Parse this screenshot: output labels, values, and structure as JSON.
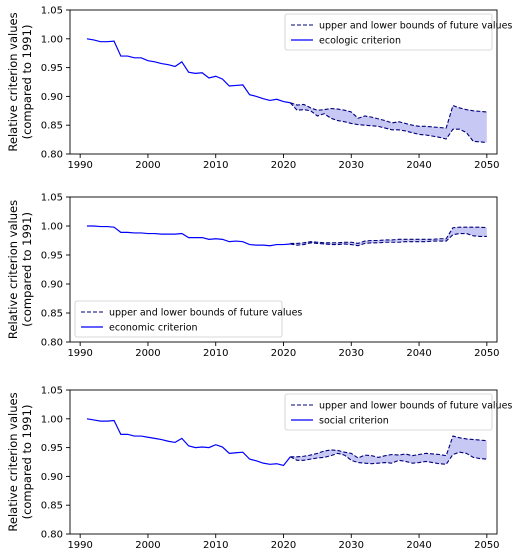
{
  "chart_data": [
    {
      "type": "line",
      "ylabel_line1": "Relative criterion values",
      "ylabel_line2": "(compared to 1991)",
      "xlim": [
        1988.5,
        2051.5
      ],
      "ylim": [
        0.8,
        1.05
      ],
      "x_ticks": [
        "1990",
        "2000",
        "2010",
        "2020",
        "2030",
        "2040",
        "2050"
      ],
      "y_ticks": [
        "0.80",
        "0.85",
        "0.90",
        "0.95",
        "1.00",
        "1.05"
      ],
      "legend_position": "top-right",
      "legend": [
        "upper and lower bounds of future values",
        "ecologic criterion"
      ],
      "color": "#0000ff",
      "fill_color": "#c8c8f4",
      "historical": {
        "x": [
          1991,
          1992,
          1993,
          1994,
          1995,
          1996,
          1997,
          1998,
          1999,
          2000,
          2001,
          2002,
          2003,
          2004,
          2005,
          2006,
          2007,
          2008,
          2009,
          2010,
          2011,
          2012,
          2013,
          2014,
          2015,
          2016,
          2017,
          2018,
          2019,
          2020,
          2021
        ],
        "y": [
          1.0,
          0.998,
          0.995,
          0.995,
          0.996,
          0.97,
          0.97,
          0.967,
          0.967,
          0.962,
          0.96,
          0.957,
          0.955,
          0.952,
          0.96,
          0.942,
          0.94,
          0.941,
          0.932,
          0.935,
          0.93,
          0.918,
          0.919,
          0.92,
          0.903,
          0.9,
          0.896,
          0.893,
          0.895,
          0.891,
          0.889
        ]
      },
      "bounds": {
        "x": [
          2021,
          2022,
          2023,
          2024,
          2025,
          2026,
          2027,
          2028,
          2029,
          2030,
          2031,
          2032,
          2033,
          2034,
          2035,
          2036,
          2037,
          2038,
          2039,
          2040,
          2041,
          2042,
          2043,
          2044,
          2045,
          2046,
          2047,
          2048,
          2049,
          2050
        ],
        "upper": [
          0.889,
          0.885,
          0.886,
          0.88,
          0.876,
          0.877,
          0.879,
          0.878,
          0.876,
          0.873,
          0.862,
          0.866,
          0.864,
          0.861,
          0.858,
          0.854,
          0.856,
          0.853,
          0.85,
          0.848,
          0.848,
          0.847,
          0.846,
          0.845,
          0.884,
          0.88,
          0.877,
          0.875,
          0.874,
          0.873
        ],
        "lower": [
          0.889,
          0.876,
          0.877,
          0.875,
          0.866,
          0.87,
          0.862,
          0.858,
          0.856,
          0.853,
          0.851,
          0.85,
          0.849,
          0.848,
          0.845,
          0.842,
          0.842,
          0.84,
          0.837,
          0.834,
          0.833,
          0.831,
          0.829,
          0.826,
          0.843,
          0.843,
          0.837,
          0.822,
          0.821,
          0.82
        ]
      }
    },
    {
      "type": "line",
      "ylabel_line1": "Relative criterion values",
      "ylabel_line2": "(compared to 1991)",
      "xlim": [
        1988.5,
        2051.5
      ],
      "ylim": [
        0.8,
        1.05
      ],
      "x_ticks": [
        "1990",
        "2000",
        "2010",
        "2020",
        "2030",
        "2040",
        "2050"
      ],
      "y_ticks": [
        "0.80",
        "0.85",
        "0.90",
        "0.95",
        "1.00",
        "1.05"
      ],
      "legend_position": "bottom-left",
      "legend": [
        "upper and lower bounds of future values",
        "economic criterion"
      ],
      "color": "#0000ff",
      "fill_color": "#c8c8f4",
      "historical": {
        "x": [
          1991,
          1992,
          1993,
          1994,
          1995,
          1996,
          1997,
          1998,
          1999,
          2000,
          2001,
          2002,
          2003,
          2004,
          2005,
          2006,
          2007,
          2008,
          2009,
          2010,
          2011,
          2012,
          2013,
          2014,
          2015,
          2016,
          2017,
          2018,
          2019,
          2020,
          2021
        ],
        "y": [
          1.0,
          1.0,
          0.999,
          0.999,
          0.998,
          0.989,
          0.989,
          0.988,
          0.988,
          0.987,
          0.987,
          0.986,
          0.986,
          0.986,
          0.987,
          0.98,
          0.98,
          0.98,
          0.977,
          0.978,
          0.977,
          0.973,
          0.974,
          0.973,
          0.968,
          0.967,
          0.967,
          0.966,
          0.968,
          0.968,
          0.969
        ]
      },
      "bounds": {
        "x": [
          2021,
          2022,
          2023,
          2024,
          2025,
          2026,
          2027,
          2028,
          2029,
          2030,
          2031,
          2032,
          2033,
          2034,
          2035,
          2036,
          2037,
          2038,
          2039,
          2040,
          2041,
          2042,
          2043,
          2044,
          2045,
          2046,
          2047,
          2048,
          2049,
          2050
        ],
        "upper": [
          0.97,
          0.97,
          0.971,
          0.973,
          0.972,
          0.971,
          0.971,
          0.971,
          0.972,
          0.972,
          0.97,
          0.974,
          0.975,
          0.975,
          0.976,
          0.976,
          0.977,
          0.977,
          0.977,
          0.977,
          0.977,
          0.977,
          0.978,
          0.978,
          0.997,
          0.998,
          0.998,
          0.998,
          0.998,
          0.997
        ],
        "lower": [
          0.969,
          0.967,
          0.968,
          0.971,
          0.97,
          0.969,
          0.968,
          0.968,
          0.969,
          0.968,
          0.966,
          0.97,
          0.971,
          0.971,
          0.972,
          0.972,
          0.972,
          0.973,
          0.973,
          0.973,
          0.973,
          0.974,
          0.974,
          0.974,
          0.985,
          0.987,
          0.987,
          0.983,
          0.982,
          0.982
        ]
      }
    },
    {
      "type": "line",
      "ylabel_line1": "Relative criterion values",
      "ylabel_line2": "(compared to 1991)",
      "xlim": [
        1988.5,
        2051.5
      ],
      "ylim": [
        0.8,
        1.05
      ],
      "x_ticks": [
        "1990",
        "2000",
        "2010",
        "2020",
        "2030",
        "2040",
        "2050"
      ],
      "y_ticks": [
        "0.80",
        "0.85",
        "0.90",
        "0.95",
        "1.00",
        "1.05"
      ],
      "legend_position": "top-right",
      "legend": [
        "upper and lower bounds of future values",
        "social criterion"
      ],
      "color": "#0000ff",
      "fill_color": "#c8c8f4",
      "historical": {
        "x": [
          1991,
          1992,
          1993,
          1994,
          1995,
          1996,
          1997,
          1998,
          1999,
          2000,
          2001,
          2002,
          2003,
          2004,
          2005,
          2006,
          2007,
          2008,
          2009,
          2010,
          2011,
          2012,
          2013,
          2014,
          2015,
          2016,
          2017,
          2018,
          2019,
          2020,
          2021
        ],
        "y": [
          1.0,
          0.998,
          0.996,
          0.996,
          0.997,
          0.973,
          0.973,
          0.97,
          0.97,
          0.968,
          0.966,
          0.964,
          0.961,
          0.959,
          0.966,
          0.953,
          0.95,
          0.951,
          0.95,
          0.955,
          0.951,
          0.94,
          0.941,
          0.942,
          0.93,
          0.927,
          0.923,
          0.921,
          0.922,
          0.919,
          0.934
        ]
      },
      "bounds": {
        "x": [
          2021,
          2022,
          2023,
          2024,
          2025,
          2026,
          2027,
          2028,
          2029,
          2030,
          2031,
          2032,
          2033,
          2034,
          2035,
          2036,
          2037,
          2038,
          2039,
          2040,
          2041,
          2042,
          2043,
          2044,
          2045,
          2046,
          2047,
          2048,
          2049,
          2050
        ],
        "upper": [
          0.934,
          0.934,
          0.935,
          0.937,
          0.94,
          0.944,
          0.946,
          0.945,
          0.942,
          0.94,
          0.932,
          0.937,
          0.936,
          0.933,
          0.936,
          0.938,
          0.937,
          0.939,
          0.936,
          0.938,
          0.94,
          0.939,
          0.938,
          0.936,
          0.97,
          0.967,
          0.965,
          0.964,
          0.963,
          0.962
        ],
        "lower": [
          0.934,
          0.928,
          0.928,
          0.93,
          0.932,
          0.933,
          0.936,
          0.94,
          0.937,
          0.928,
          0.924,
          0.923,
          0.922,
          0.923,
          0.924,
          0.923,
          0.928,
          0.926,
          0.923,
          0.924,
          0.926,
          0.924,
          0.922,
          0.921,
          0.938,
          0.942,
          0.94,
          0.933,
          0.931,
          0.93
        ]
      }
    }
  ]
}
